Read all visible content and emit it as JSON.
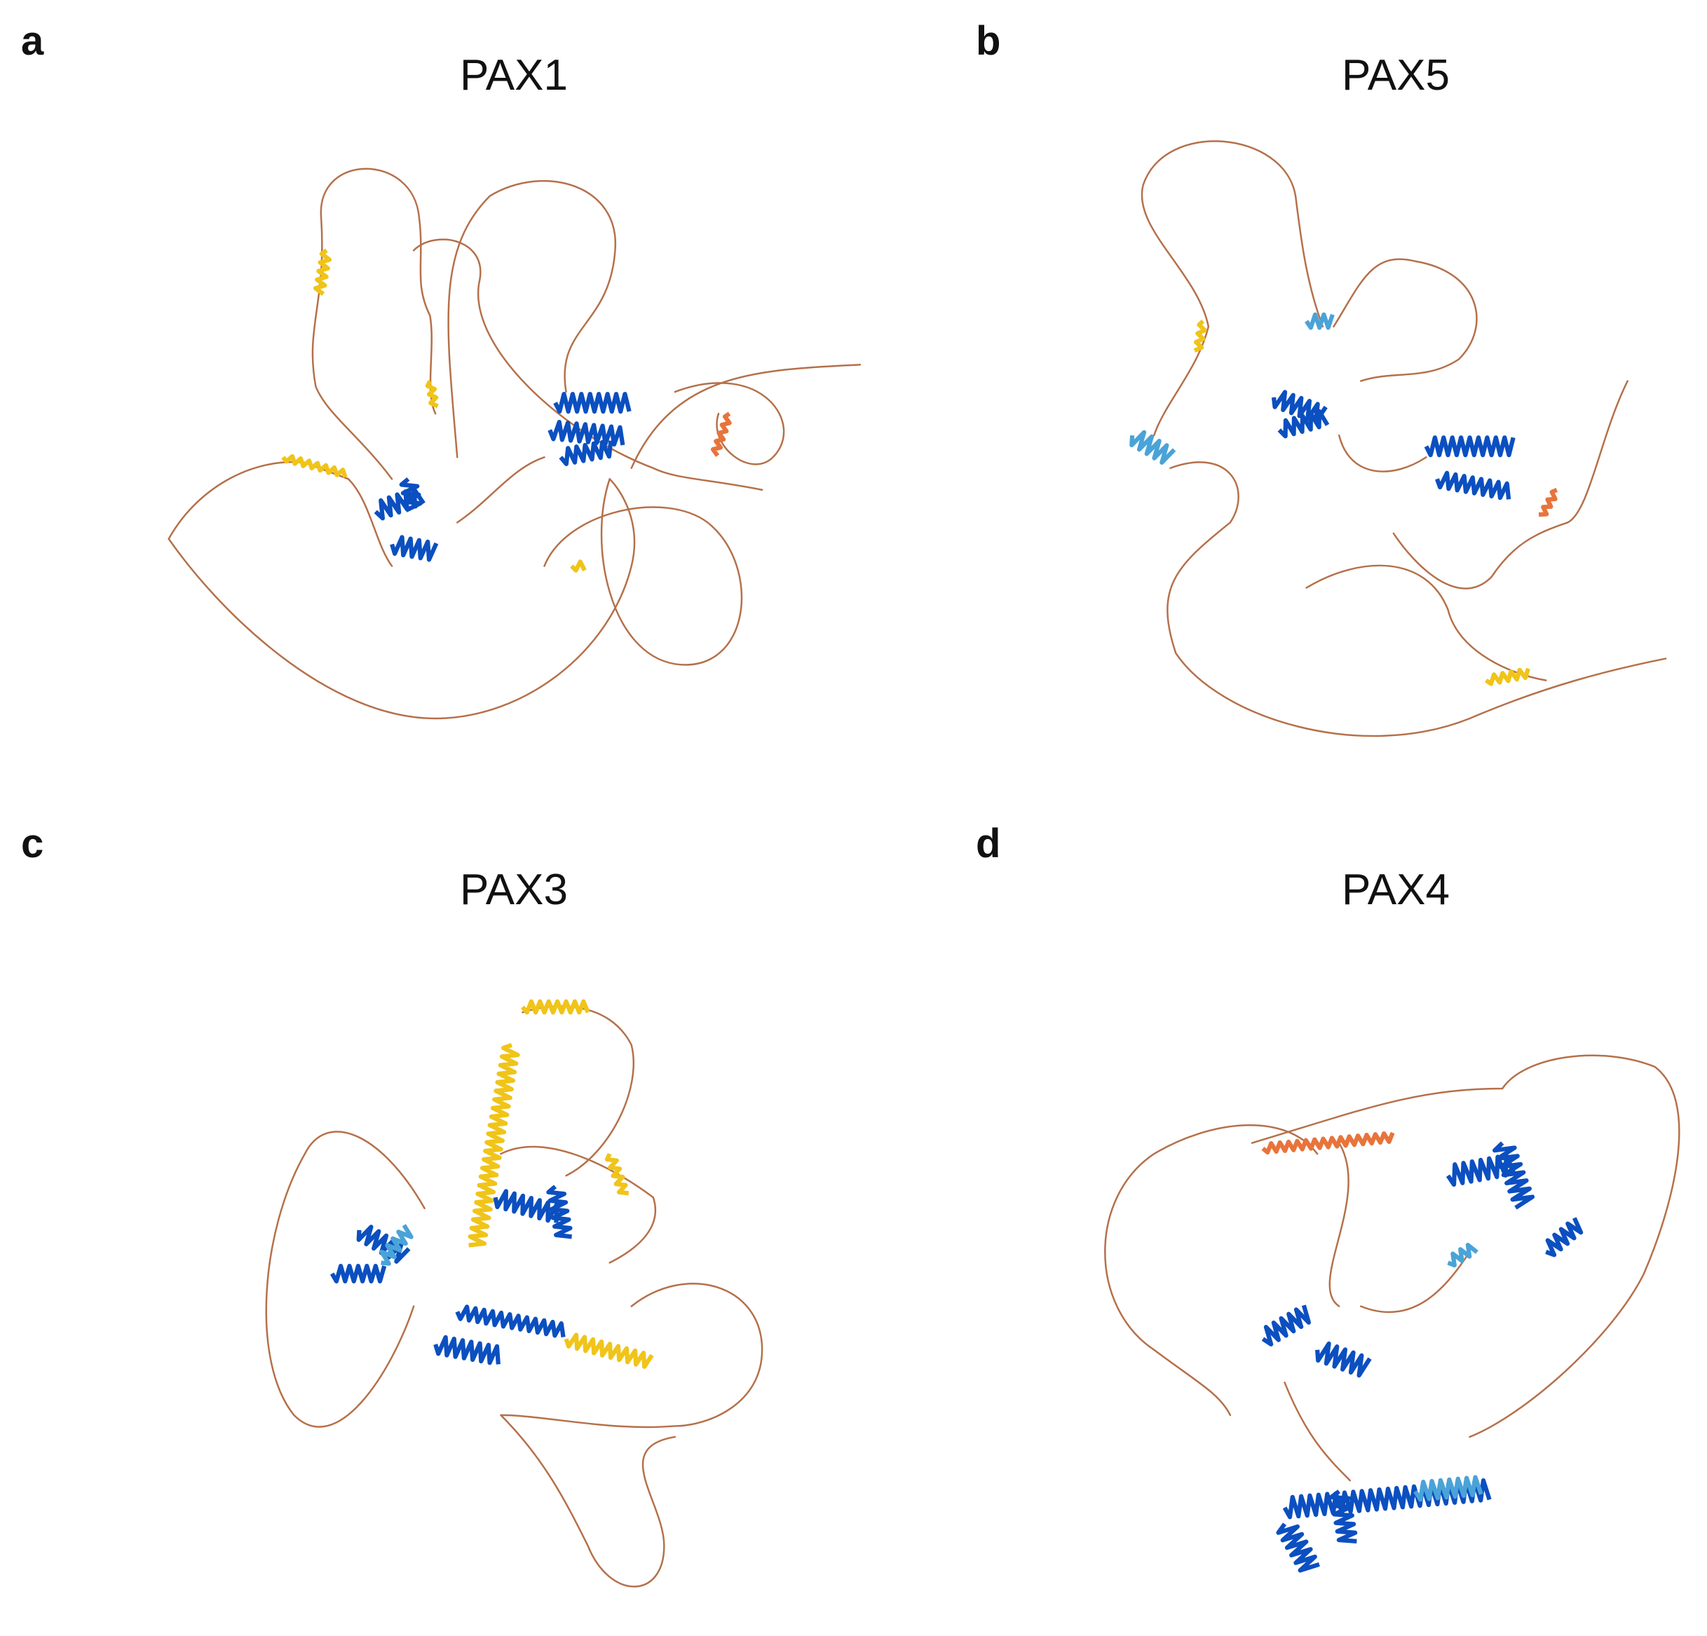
{
  "panels": [
    {
      "label": "a",
      "title": "PAX1"
    },
    {
      "label": "b",
      "title": "PAX5"
    },
    {
      "label": "c",
      "title": "PAX3"
    },
    {
      "label": "d",
      "title": "PAX4"
    }
  ]
}
